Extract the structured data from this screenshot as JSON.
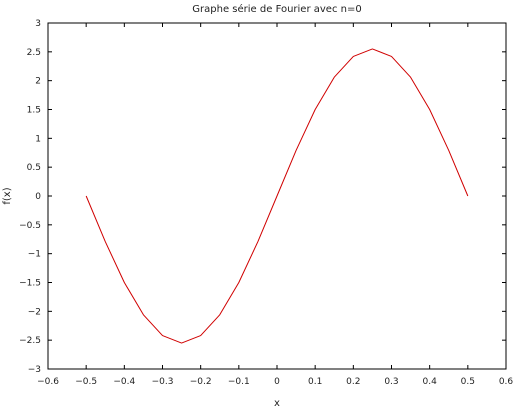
{
  "chart_data": {
    "type": "line",
    "title": "Graphe série de Fourier avec n=0",
    "xlabel": "x",
    "ylabel": "f(x)",
    "xlim": [
      -0.6,
      0.6
    ],
    "ylim": [
      -3,
      3
    ],
    "grid": false,
    "x_ticks": [
      -0.6,
      -0.5,
      -0.4,
      -0.3,
      -0.2,
      -0.1,
      0,
      0.1,
      0.2,
      0.3,
      0.4,
      0.5,
      0.6
    ],
    "x_tick_labels": [
      "−0.6",
      "−0.5",
      "−0.4",
      "−0.3",
      "−0.2",
      "−0.1",
      "0",
      "0.1",
      "0.2",
      "0.3",
      "0.4",
      "0.5",
      "0.6"
    ],
    "y_ticks": [
      -3,
      -2.5,
      -2,
      -1.5,
      -1,
      -0.5,
      0,
      0.5,
      1,
      1.5,
      2,
      2.5,
      3
    ],
    "y_tick_labels": [
      "−3",
      "−2.5",
      "−2",
      "−1.5",
      "−1",
      "−0.5",
      "0",
      "0.5",
      "1",
      "1.5",
      "2",
      "2.5",
      "3"
    ],
    "series": [
      {
        "color": "#d00000",
        "x": [
          -0.5,
          -0.45,
          -0.4,
          -0.35,
          -0.3,
          -0.25,
          -0.2,
          -0.15,
          -0.1,
          -0.05,
          0,
          0.05,
          0.1,
          0.15,
          0.2,
          0.25,
          0.3,
          0.35,
          0.4,
          0.45,
          0.5
        ],
        "y": [
          0,
          -0.79,
          -1.5,
          -2.06,
          -2.42,
          -2.55,
          -2.42,
          -2.06,
          -1.5,
          -0.79,
          0,
          0.79,
          1.5,
          2.06,
          2.42,
          2.55,
          2.42,
          2.06,
          1.5,
          0.79,
          0
        ]
      }
    ]
  }
}
